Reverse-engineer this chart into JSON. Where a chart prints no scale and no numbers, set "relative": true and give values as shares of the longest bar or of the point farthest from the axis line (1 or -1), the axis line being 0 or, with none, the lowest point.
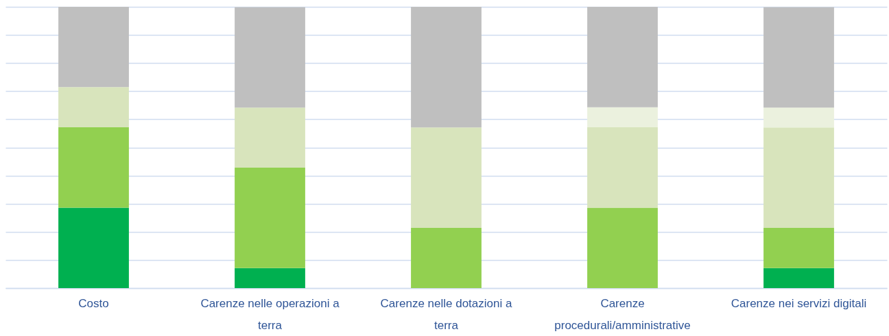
{
  "chart_data": {
    "type": "bar",
    "stacked": true,
    "relative": true,
    "grid": "y",
    "categories": [
      "Costo",
      "Carenze nelle operazioni a terra",
      "Carenze nelle dotazioni a terra",
      "Carenze procedurali/amministrative",
      "Carenze nei servizi digitali"
    ],
    "series": [
      {
        "color": "#00b050",
        "values": [
          0.286,
          0.071,
          0,
          0,
          0.071
        ]
      },
      {
        "color": "#92d050",
        "values": [
          0.286,
          0.357,
          0.214,
          0.286,
          0.143
        ]
      },
      {
        "color": "#d8e4bc",
        "values": [
          0.143,
          0.214,
          0.357,
          0.286,
          0.357
        ]
      },
      {
        "color": "#ebf1de",
        "values": [
          0,
          0,
          0,
          0.071,
          0.071
        ]
      },
      {
        "color": "#bfbfbf",
        "values": [
          0.285,
          0.357,
          0.429,
          0.357,
          0.357
        ]
      }
    ]
  }
}
